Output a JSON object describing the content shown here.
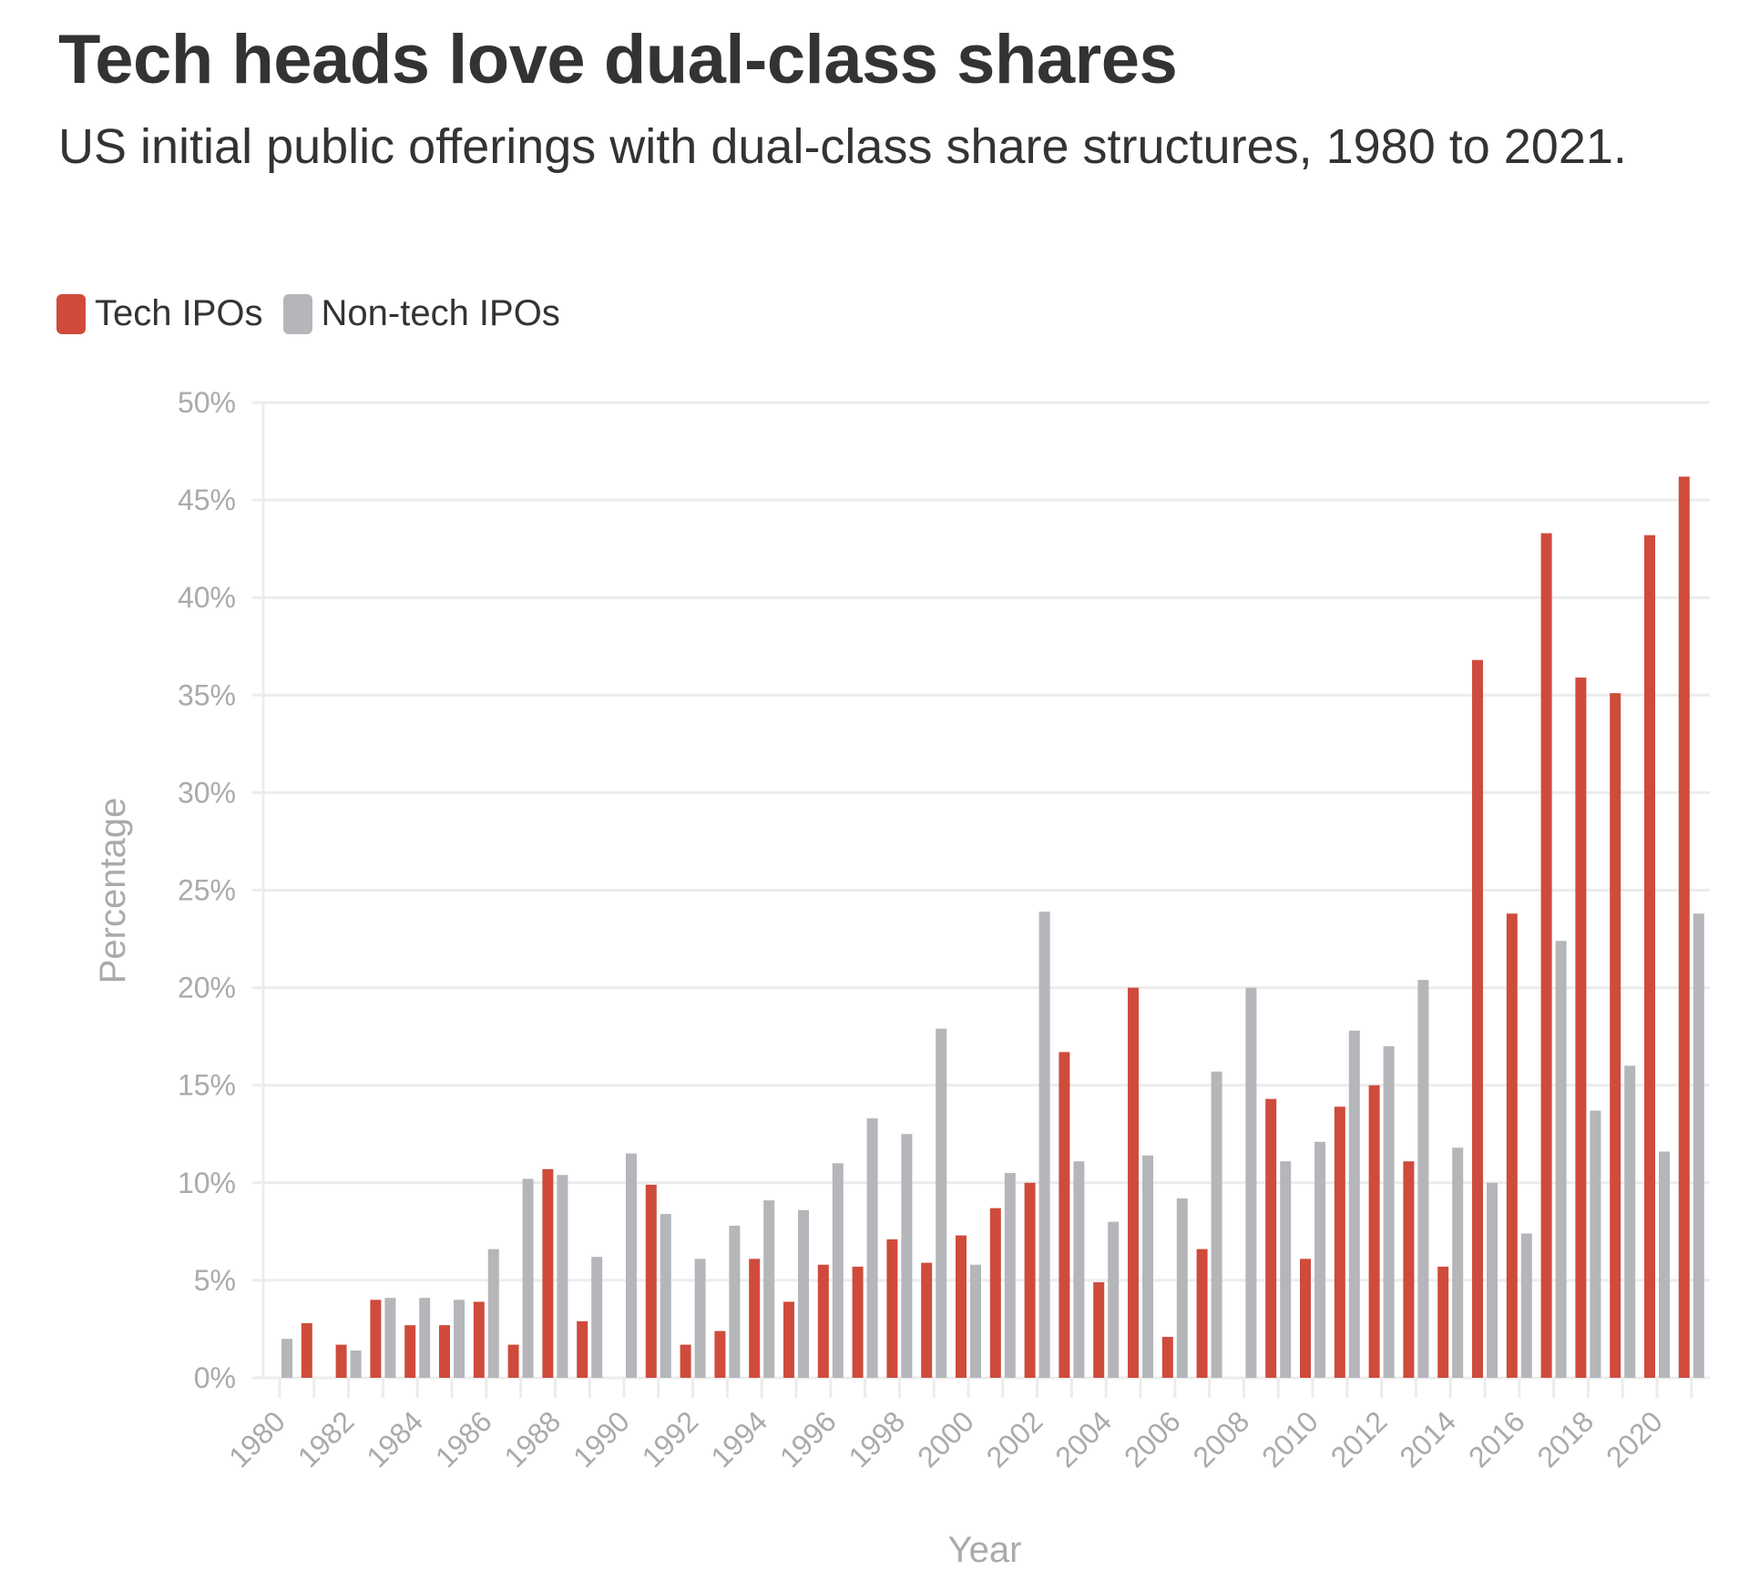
{
  "chart_data": {
    "type": "bar",
    "title": "Tech heads love dual-class shares",
    "subtitle": "US initial public offerings with dual-class share structures, 1980 to 2021.",
    "xlabel": "Year",
    "ylabel": "Percentage",
    "ylim": [
      0,
      50
    ],
    "yticks": [
      "0%",
      "5%",
      "10%",
      "15%",
      "20%",
      "25%",
      "30%",
      "35%",
      "40%",
      "45%",
      "50%"
    ],
    "grid": true,
    "legend_placement": "top-left",
    "categories": [
      1980,
      1981,
      1982,
      1983,
      1984,
      1985,
      1986,
      1987,
      1988,
      1989,
      1990,
      1991,
      1992,
      1993,
      1994,
      1995,
      1996,
      1997,
      1998,
      1999,
      2000,
      2001,
      2002,
      2003,
      2004,
      2005,
      2006,
      2007,
      2008,
      2009,
      2010,
      2011,
      2012,
      2013,
      2014,
      2015,
      2016,
      2017,
      2018,
      2019,
      2020,
      2021
    ],
    "xtick_labels": [
      "1980",
      "1982",
      "1984",
      "1986",
      "1988",
      "1990",
      "1992",
      "1994",
      "1996",
      "1998",
      "2000",
      "2002",
      "2004",
      "2006",
      "2008",
      "2010",
      "2012",
      "2014",
      "2016",
      "2018",
      "2020"
    ],
    "series": [
      {
        "name": "Tech IPOs",
        "color": "#cf4b3c",
        "values": [
          0,
          2.8,
          1.7,
          4.0,
          2.7,
          2.7,
          3.9,
          1.7,
          10.7,
          2.9,
          0,
          9.9,
          1.7,
          2.4,
          6.1,
          3.9,
          5.8,
          5.7,
          7.1,
          5.9,
          7.3,
          8.7,
          10.0,
          16.7,
          4.9,
          20.0,
          2.1,
          6.6,
          0,
          14.3,
          6.1,
          13.9,
          15.0,
          11.1,
          5.7,
          36.8,
          23.8,
          43.3,
          35.9,
          35.1,
          43.2,
          46.2
        ]
      },
      {
        "name": "Non-tech IPOs",
        "color": "#b4b6ba",
        "values": [
          2.0,
          0,
          1.4,
          4.1,
          4.1,
          4.0,
          6.6,
          10.2,
          10.4,
          6.2,
          11.5,
          8.4,
          6.1,
          7.8,
          9.1,
          8.6,
          11.0,
          13.3,
          12.5,
          17.9,
          5.8,
          10.5,
          23.9,
          11.1,
          8.0,
          11.4,
          9.2,
          15.7,
          20.0,
          11.1,
          12.1,
          17.8,
          17.0,
          20.4,
          11.8,
          10.0,
          7.4,
          22.4,
          13.7,
          16.0,
          11.6,
          23.8
        ]
      }
    ]
  }
}
